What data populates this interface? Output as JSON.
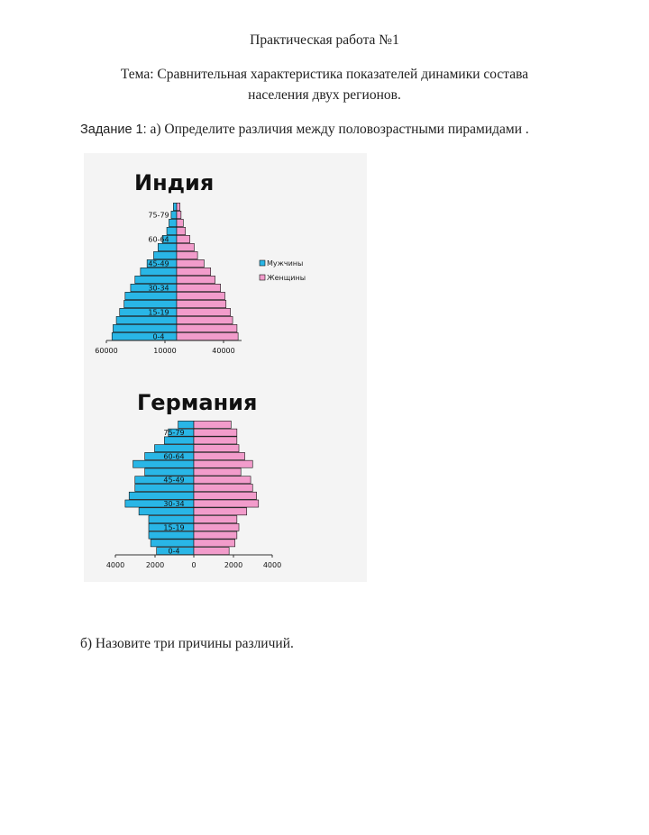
{
  "title": "Практическая работа №1",
  "topic_line1": "Тема: Сравнительная характеристика показателей динамики состава",
  "topic_line2": "населения двух регионов.",
  "task1_label": "Задание 1:",
  "task1_text": " а) Определите различия между половозрастными пирамидами .",
  "task_b": "б) Назовите три причины различий.",
  "colors": {
    "male": "#29b6e6",
    "female": "#f29ccb",
    "outline": "#111111"
  },
  "chart_data": [
    {
      "type": "bar",
      "title": "Индия",
      "legend": [
        "Мужчины",
        "Женщины"
      ],
      "legend_position": "right",
      "age_labels": [
        "0-4",
        "15-19",
        "30-34",
        "45-49",
        "60-64",
        "75-79"
      ],
      "x_tick_labels": [
        "60000",
        "10000",
        "40000"
      ],
      "series": [
        {
          "name": "Мужчины",
          "values": [
            59000,
            58000,
            55000,
            52000,
            48000,
            47000,
            42000,
            38000,
            33000,
            27000,
            21000,
            17000,
            13000,
            9000,
            7000,
            5000,
            3000
          ]
        },
        {
          "name": "Женщины",
          "values": [
            56000,
            55000,
            51000,
            49000,
            45000,
            44000,
            40000,
            35000,
            31000,
            25000,
            19000,
            16000,
            12000,
            8000,
            6000,
            4000,
            3000
          ]
        }
      ]
    },
    {
      "type": "bar",
      "title": "Германия",
      "age_labels": [
        "0-4",
        "15-19",
        "30-34",
        "45-49",
        "60-64",
        "75-79"
      ],
      "x_tick_labels": [
        "4000",
        "2000",
        "0",
        "2000",
        "4000"
      ],
      "xlim": [
        -4000,
        4000
      ],
      "series": [
        {
          "name": "Мужчины",
          "values": [
            1900,
            2200,
            2300,
            2300,
            2300,
            2800,
            3500,
            3300,
            3000,
            3000,
            2500,
            3100,
            2500,
            2000,
            1500,
            1300,
            800
          ]
        },
        {
          "name": "Женщины",
          "values": [
            1800,
            2100,
            2200,
            2300,
            2200,
            2700,
            3300,
            3200,
            3000,
            2900,
            2400,
            3000,
            2600,
            2300,
            2200,
            2200,
            1900
          ]
        }
      ]
    }
  ]
}
